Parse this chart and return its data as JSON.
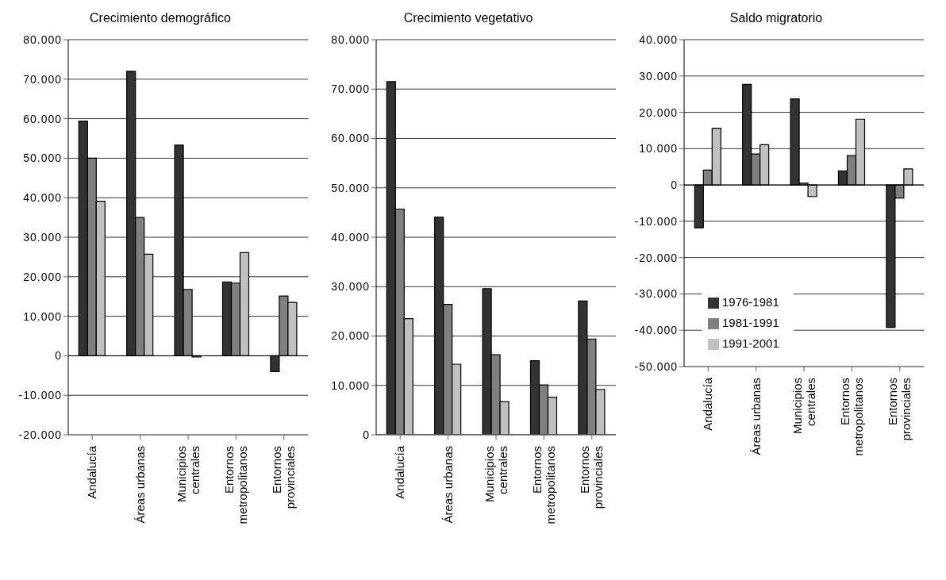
{
  "chart_data": [
    {
      "type": "bar",
      "title": "Crecimiento demográfico",
      "categories": [
        "Andalucía",
        "Áreas urbanas",
        "Municipios centrales",
        "Entornos metropolitanos",
        "Entornos provinciales"
      ],
      "series": [
        {
          "color": "#333333",
          "values": [
            59400,
            72000,
            53300,
            18700,
            -4000
          ]
        },
        {
          "color": "#808080",
          "values": [
            50000,
            35000,
            16800,
            18400,
            15100
          ]
        },
        {
          "color": "#c0c0c0",
          "values": [
            39100,
            25700,
            -300,
            26100,
            13500
          ]
        }
      ],
      "ylim": [
        -20000,
        80000
      ],
      "yticks": [
        {
          "value": -20000,
          "label": "-20.000"
        },
        {
          "value": -10000,
          "label": "-10.000"
        },
        {
          "value": 0,
          "label": "0"
        },
        {
          "value": 10000,
          "label": "10.000"
        },
        {
          "value": 20000,
          "label": "20.000"
        },
        {
          "value": 30000,
          "label": "30.000"
        },
        {
          "value": 40000,
          "label": "40.000"
        },
        {
          "value": 50000,
          "label": "50.000"
        },
        {
          "value": 60000,
          "label": "60.000"
        },
        {
          "value": 70000,
          "label": "70.000"
        },
        {
          "value": 80000,
          "label": "80.000"
        }
      ],
      "grid": "y"
    },
    {
      "type": "bar",
      "title": "Crecimiento vegetativo",
      "categories": [
        "Andalucía",
        "Áreas urbanas",
        "Municipios centrales",
        "Entornos metropolitanos",
        "Entornos provinciales"
      ],
      "series": [
        {
          "color": "#333333",
          "values": [
            71500,
            44100,
            29600,
            15000,
            27100
          ]
        },
        {
          "color": "#808080",
          "values": [
            45700,
            26400,
            16200,
            10100,
            19400
          ]
        },
        {
          "color": "#c0c0c0",
          "values": [
            23500,
            14300,
            6700,
            7600,
            9200
          ]
        }
      ],
      "ylim": [
        0,
        80000
      ],
      "yticks": [
        {
          "value": 0,
          "label": "0"
        },
        {
          "value": 10000,
          "label": "10.000"
        },
        {
          "value": 20000,
          "label": "20.000"
        },
        {
          "value": 30000,
          "label": "30.000"
        },
        {
          "value": 40000,
          "label": "40.000"
        },
        {
          "value": 50000,
          "label": "50.000"
        },
        {
          "value": 60000,
          "label": "60.000"
        },
        {
          "value": 70000,
          "label": "70.000"
        },
        {
          "value": 80000,
          "label": "80.000"
        }
      ],
      "grid": "y"
    },
    {
      "type": "bar",
      "title": "Saldo migratorio",
      "categories": [
        "Andalucía",
        "Áreas urbanas",
        "Municipios centrales",
        "Entornos metropolitanos",
        "Entornos provinciales"
      ],
      "series": [
        {
          "name": "1976-1981",
          "color": "#333333",
          "values": [
            -11800,
            27700,
            23700,
            3900,
            -39200
          ]
        },
        {
          "name": "1981-1991",
          "color": "#808080",
          "values": [
            4100,
            8500,
            500,
            8100,
            -3600
          ]
        },
        {
          "name": "1991-2001",
          "color": "#c0c0c0",
          "values": [
            15600,
            11100,
            -3200,
            18100,
            4400
          ]
        }
      ],
      "ylim": [
        -50000,
        40000
      ],
      "yticks": [
        {
          "value": -50000,
          "label": "-50.000"
        },
        {
          "value": -40000,
          "label": "-40.000"
        },
        {
          "value": -30000,
          "label": "-30.000"
        },
        {
          "value": -20000,
          "label": "-20.000"
        },
        {
          "value": -10000,
          "label": "-10.000"
        },
        {
          "value": 0,
          "label": "0"
        },
        {
          "value": 10000,
          "label": "10.000"
        },
        {
          "value": 20000,
          "label": "20.000"
        },
        {
          "value": 30000,
          "label": "30.000"
        },
        {
          "value": 40000,
          "label": "40.000"
        }
      ],
      "grid": "y",
      "legend": "bottom left"
    }
  ]
}
